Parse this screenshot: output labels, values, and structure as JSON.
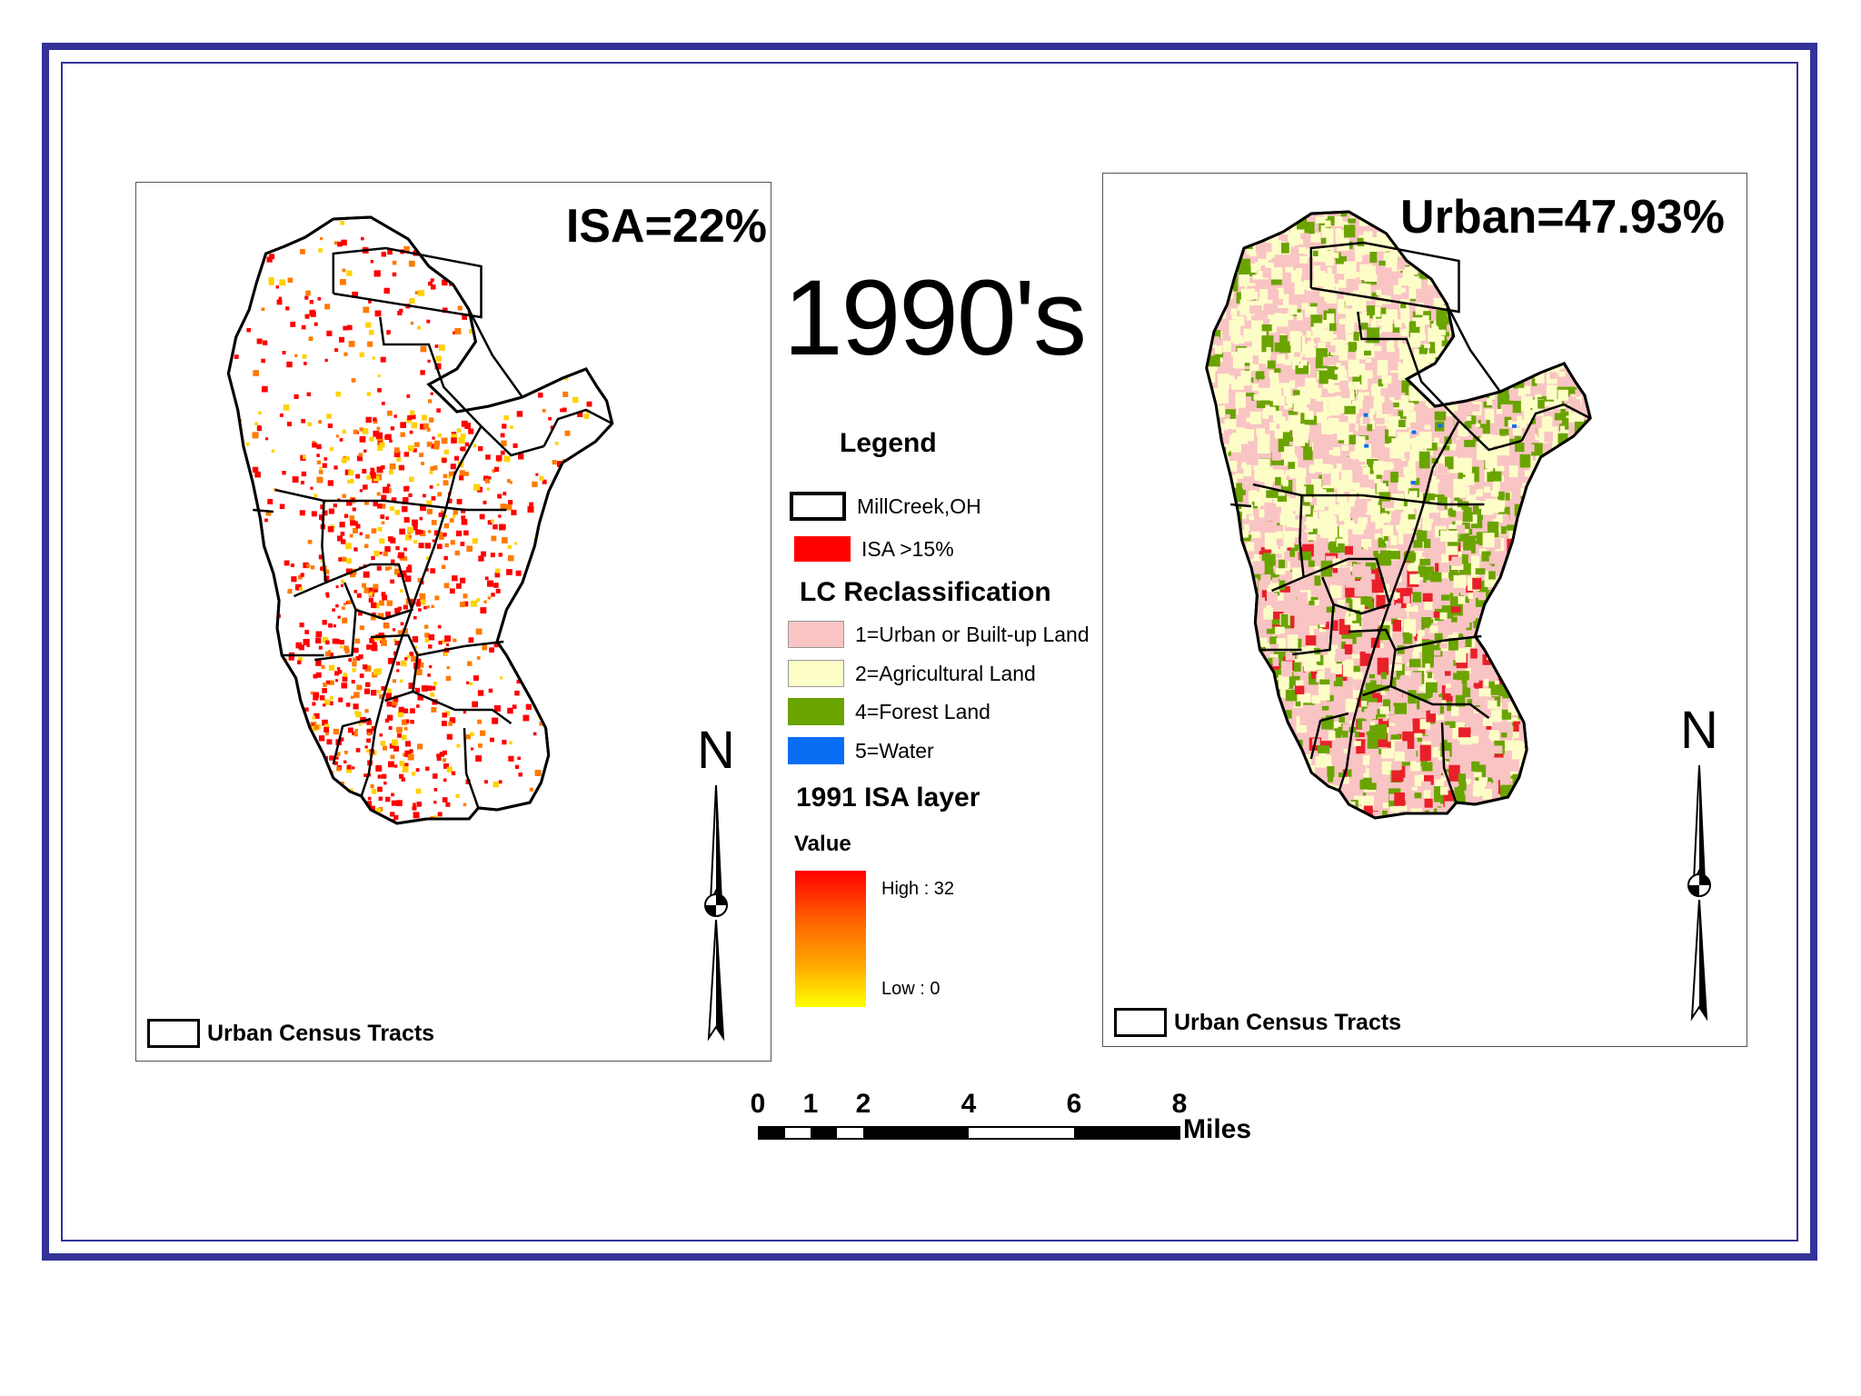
{
  "center_title": "1990's",
  "left_panel": {
    "title": "ISA=22%",
    "tracts_label": "Urban Census Tracts",
    "north_label": "N"
  },
  "right_panel": {
    "title": "Urban=47.93%",
    "tracts_label": "Urban Census Tracts",
    "north_label": "N"
  },
  "legend": {
    "heading": "Legend",
    "boundary": {
      "label": "MillCreek,OH"
    },
    "isa": {
      "label": "ISA >15%",
      "color": "#ff0000"
    },
    "lc_heading": "LC Reclassification",
    "lc_classes": [
      {
        "label": "1=Urban or Built-up Land",
        "color": "#f9c4c4"
      },
      {
        "label": "2=Agricultural Land",
        "color": "#fdfdc8"
      },
      {
        "label": "4=Forest Land",
        "color": "#6aa400"
      },
      {
        "label": "5=Water",
        "color": "#0a6ef5"
      }
    ],
    "isa_layer_heading": "1991 ISA layer",
    "value_heading": "Value",
    "high_label": "High : 32",
    "low_label": "Low : 0"
  },
  "scale_bar": {
    "ticks": [
      "0",
      "1",
      "2",
      "4",
      "6",
      "8"
    ],
    "units": "Miles"
  },
  "colors": {
    "frame": "#33339a",
    "isa_high": "#ff0000",
    "isa_low": "#ffff00"
  }
}
